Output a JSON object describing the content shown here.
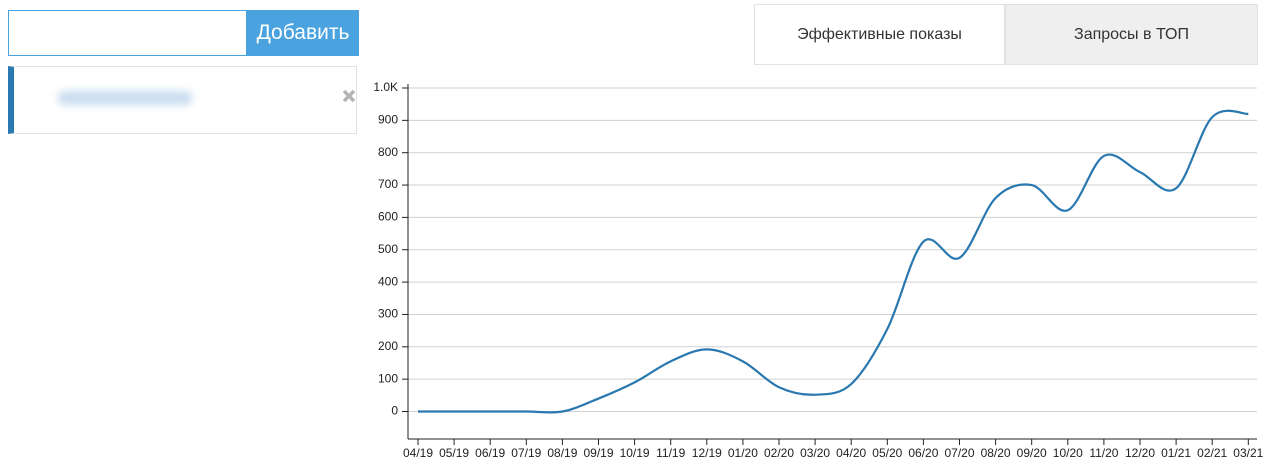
{
  "search": {
    "button": "Добавить"
  },
  "tabs": [
    "Эффективные показы",
    "Запросы в ТОП"
  ],
  "chart_data": {
    "type": "line",
    "categories": [
      "04/19",
      "05/19",
      "06/19",
      "07/19",
      "08/19",
      "09/19",
      "10/19",
      "11/19",
      "12/19",
      "01/20",
      "02/20",
      "03/20",
      "04/20",
      "05/20",
      "06/20",
      "07/20",
      "08/20",
      "09/20",
      "10/20",
      "11/20",
      "12/20",
      "01/21",
      "02/21",
      "03/21"
    ],
    "values": [
      0,
      0,
      0,
      0,
      0,
      40,
      90,
      155,
      192,
      155,
      75,
      52,
      85,
      255,
      525,
      475,
      660,
      700,
      622,
      790,
      740,
      690,
      910,
      920
    ],
    "color": "#2a78b0",
    "ylim": [
      -85,
      1000
    ],
    "yticks": [
      0,
      100,
      200,
      300,
      400,
      500,
      600,
      700,
      800,
      900,
      {
        "value": 1000,
        "label": "1.0K"
      }
    ],
    "grid": true
  }
}
